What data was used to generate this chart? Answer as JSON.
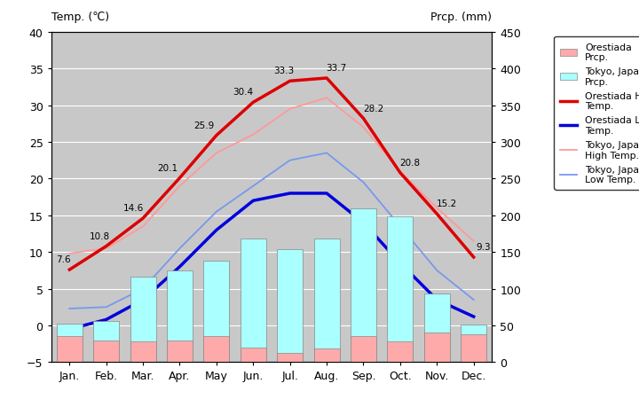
{
  "months": [
    "Jan.",
    "Feb.",
    "Mar.",
    "Apr.",
    "May",
    "Jun.",
    "Jul.",
    "Aug.",
    "Sep.",
    "Oct.",
    "Nov.",
    "Dec."
  ],
  "orestiada_high": [
    7.6,
    10.8,
    14.6,
    20.1,
    25.9,
    30.4,
    33.3,
    33.7,
    28.2,
    20.8,
    15.2,
    9.3
  ],
  "orestiada_low": [
    -0.5,
    0.8,
    3.5,
    8.0,
    13.0,
    17.0,
    18.0,
    18.0,
    14.0,
    8.5,
    3.5,
    1.2
  ],
  "tokyo_high": [
    9.8,
    10.5,
    13.5,
    19.0,
    23.5,
    26.0,
    29.5,
    31.0,
    27.0,
    21.0,
    16.0,
    11.5
  ],
  "tokyo_low": [
    2.3,
    2.5,
    5.0,
    10.5,
    15.5,
    19.0,
    22.5,
    23.5,
    19.5,
    13.5,
    7.5,
    3.5
  ],
  "orestiada_prcp_mm": [
    35,
    30,
    28,
    30,
    35,
    20,
    12,
    18,
    35,
    28,
    40,
    38
  ],
  "tokyo_prcp_mm": [
    52,
    56,
    117,
    125,
    138,
    168,
    154,
    168,
    210,
    198,
    93,
    51
  ],
  "orestiada_high_color": "#dd0000",
  "orestiada_low_color": "#0000dd",
  "tokyo_high_color": "#ff9999",
  "tokyo_low_color": "#7799ee",
  "orestiada_prcp_color": "#ffaaaa",
  "tokyo_prcp_color": "#aaffff",
  "plot_bg_color": "#c8c8c8",
  "ylim_left": [
    -5,
    40
  ],
  "ylim_right": [
    0,
    450
  ],
  "yticks_left": [
    -5,
    0,
    5,
    10,
    15,
    20,
    25,
    30,
    35,
    40
  ],
  "yticks_right": [
    0,
    50,
    100,
    150,
    200,
    250,
    300,
    350,
    400,
    450
  ],
  "grid_color": "white",
  "title_left": "Temp. (℃)",
  "title_right": "Prcp. (mm)",
  "high_labels": [
    7.6,
    10.8,
    14.6,
    20.1,
    25.9,
    30.4,
    33.3,
    33.7,
    28.2,
    20.8,
    15.2,
    9.3
  ],
  "high_label_xoff": [
    -5,
    -5,
    -8,
    -10,
    -10,
    -8,
    -5,
    8,
    8,
    8,
    8,
    8
  ],
  "high_label_yoff": [
    5,
    5,
    5,
    5,
    5,
    5,
    5,
    5,
    5,
    5,
    5,
    5
  ]
}
